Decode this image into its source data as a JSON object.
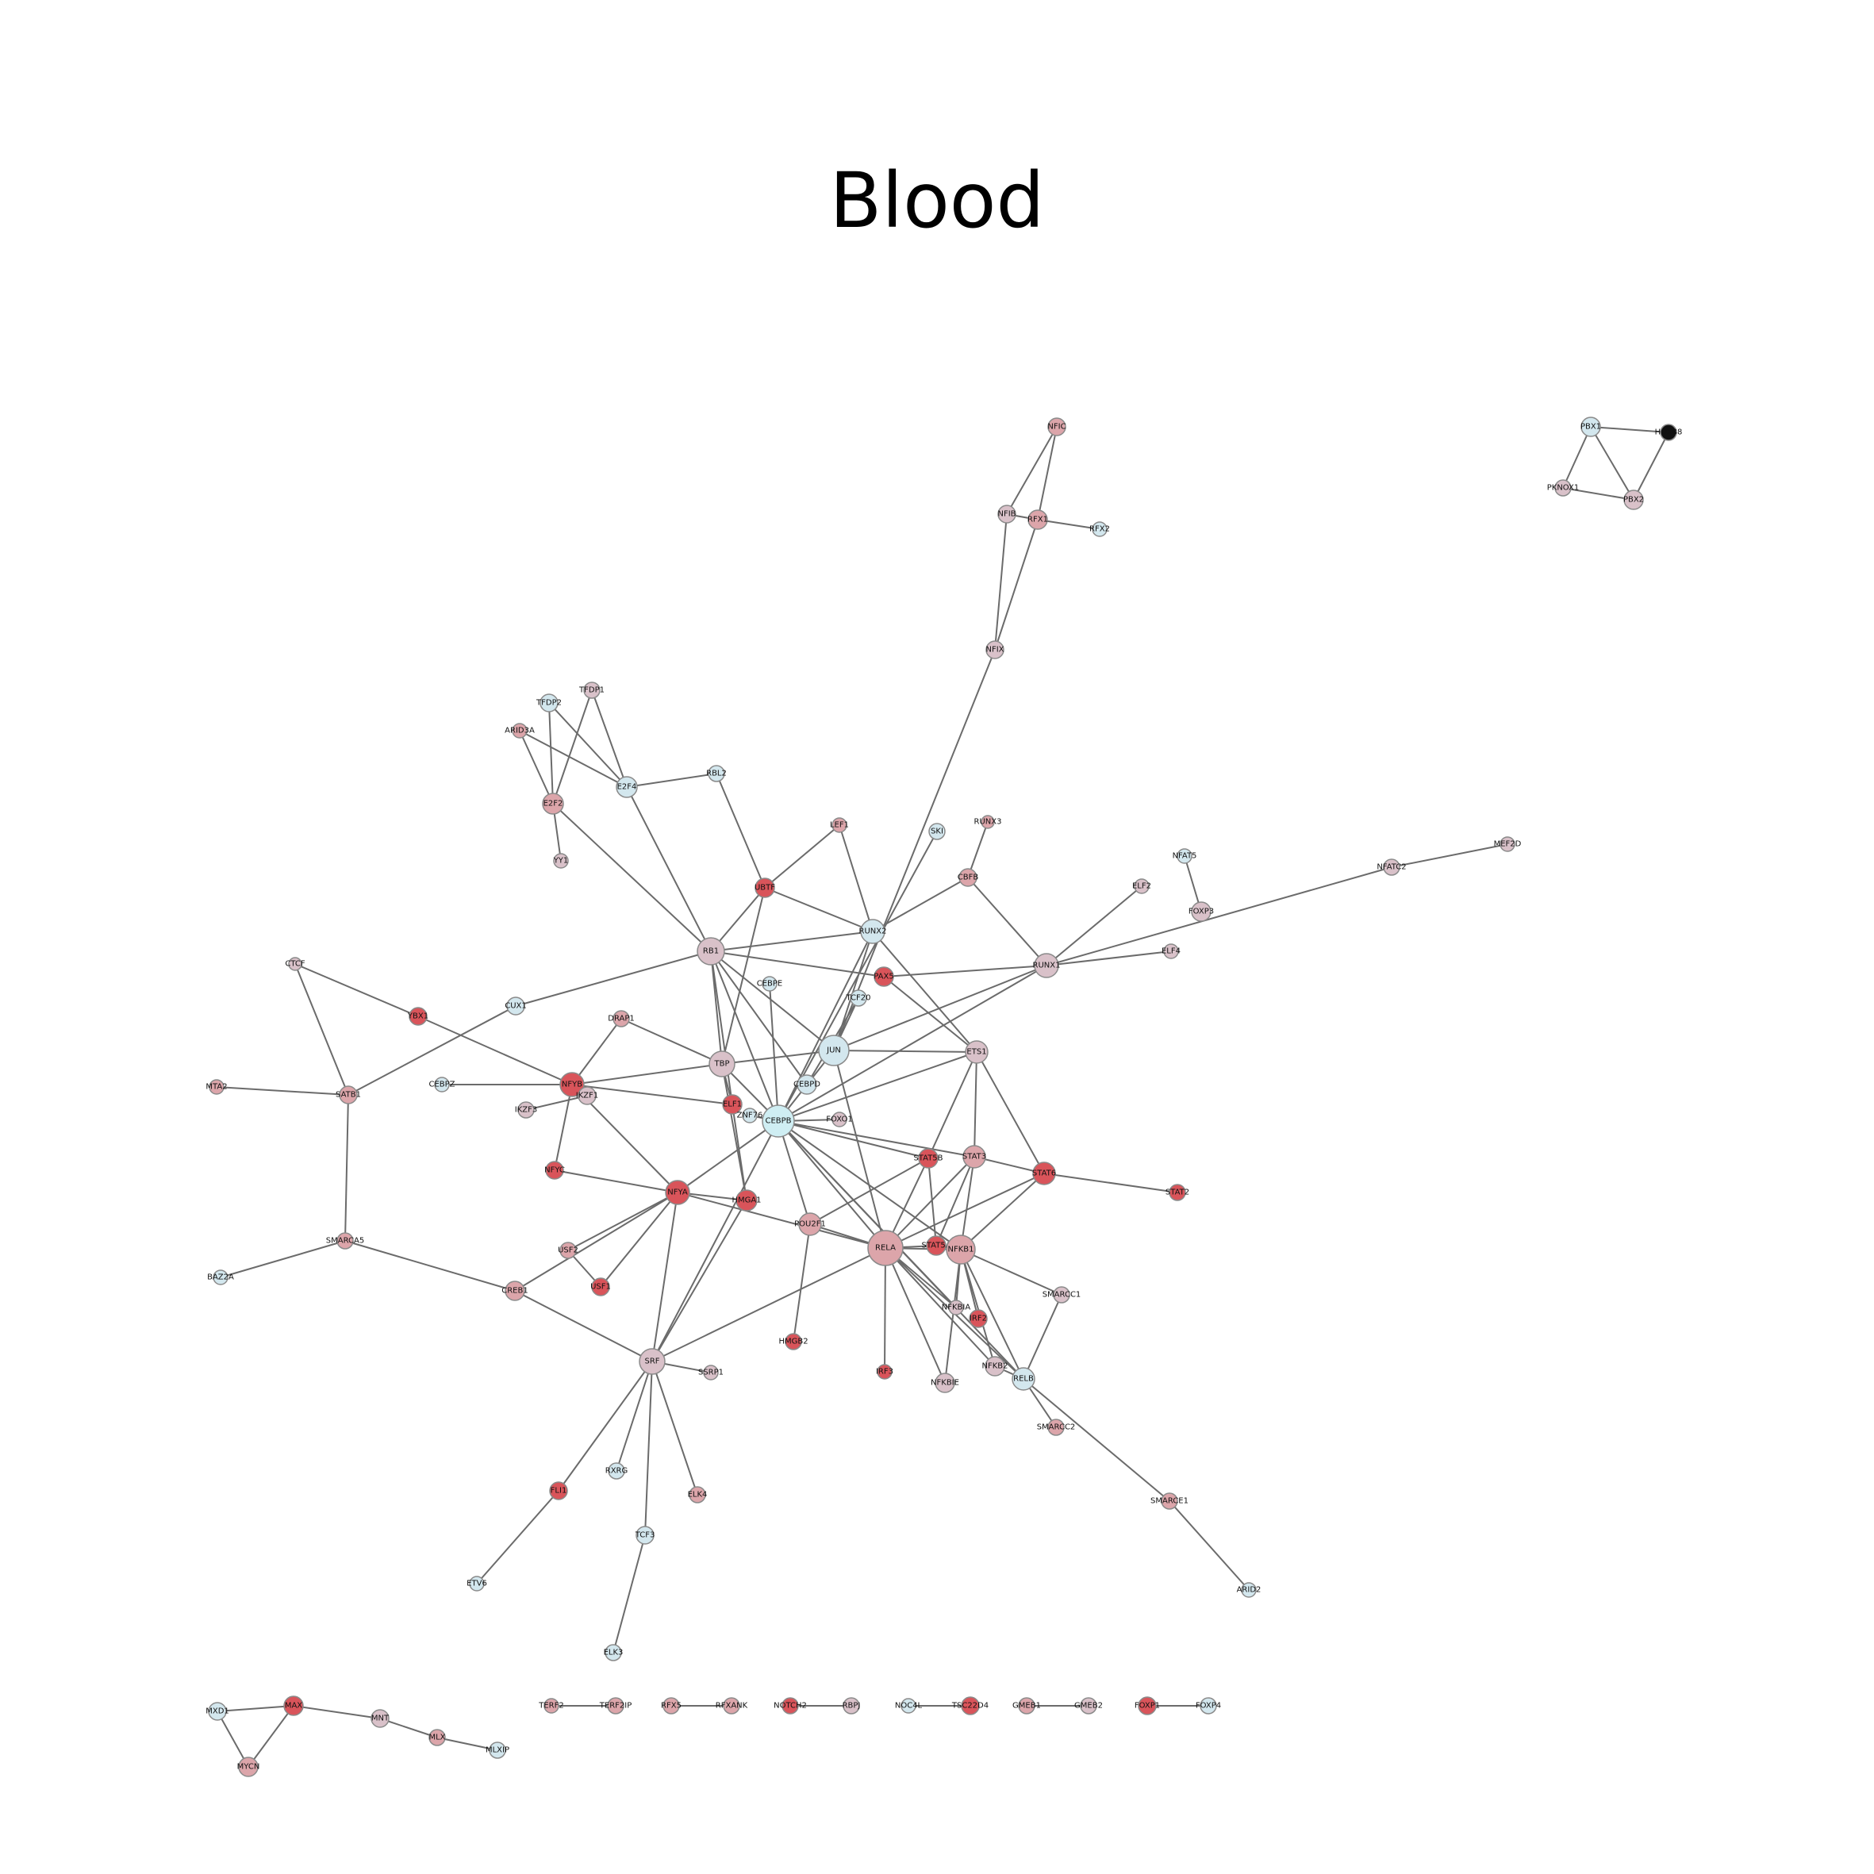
{
  "title": "Blood",
  "colors": {
    "red": "#d9545a",
    "pink": "#dca5aa",
    "mauve": "#d9c1c9",
    "light": "#d3e7ee",
    "cyan": "#cfeef3",
    "black": "#111111",
    "edge": "#6b6b6b"
  },
  "nodes": [
    {
      "id": "NFIC",
      "c": "pink"
    },
    {
      "id": "NFIB",
      "c": "mauve"
    },
    {
      "id": "RFX1",
      "c": "pink"
    },
    {
      "id": "RFX2",
      "c": "light"
    },
    {
      "id": "NFIX",
      "c": "mauve"
    },
    {
      "id": "PBX1",
      "c": "light"
    },
    {
      "id": "HOXB8",
      "c": "black",
      "lbl": "HOXB8"
    },
    {
      "id": "PKNOX1",
      "c": "mauve"
    },
    {
      "id": "PBX2",
      "c": "mauve"
    },
    {
      "id": "TFDP2",
      "c": "light"
    },
    {
      "id": "TFDP1",
      "c": "mauve"
    },
    {
      "id": "ARID3A",
      "c": "pink"
    },
    {
      "id": "E2F4",
      "c": "light"
    },
    {
      "id": "RBL2",
      "c": "light"
    },
    {
      "id": "E2F2",
      "c": "pink"
    },
    {
      "id": "YY1",
      "c": "mauve"
    },
    {
      "id": "LEF1",
      "c": "pink"
    },
    {
      "id": "SKI",
      "c": "light"
    },
    {
      "id": "RUNX3",
      "c": "pink"
    },
    {
      "id": "MEF2D",
      "c": "mauve"
    },
    {
      "id": "NFAT5",
      "c": "light"
    },
    {
      "id": "NFATC2",
      "c": "mauve"
    },
    {
      "id": "UBTF",
      "c": "red"
    },
    {
      "id": "CBFB",
      "c": "pink"
    },
    {
      "id": "ELF2",
      "c": "mauve"
    },
    {
      "id": "FOXP3",
      "c": "mauve"
    },
    {
      "id": "RUNX2",
      "c": "light"
    },
    {
      "id": "RB1",
      "c": "mauve"
    },
    {
      "id": "RUNX1",
      "c": "mauve"
    },
    {
      "id": "ELF4",
      "c": "mauve"
    },
    {
      "id": "CTCF",
      "c": "mauve"
    },
    {
      "id": "PAX5",
      "c": "red"
    },
    {
      "id": "CEBPE",
      "c": "light"
    },
    {
      "id": "TCF20",
      "c": "light"
    },
    {
      "id": "CUX1",
      "c": "light"
    },
    {
      "id": "YBX1",
      "c": "red"
    },
    {
      "id": "DRAP1",
      "c": "pink"
    },
    {
      "id": "JUN",
      "c": "light"
    },
    {
      "id": "ETS1",
      "c": "mauve"
    },
    {
      "id": "TBP",
      "c": "mauve"
    },
    {
      "id": "MTA2",
      "c": "pink"
    },
    {
      "id": "SATB1",
      "c": "pink"
    },
    {
      "id": "CEBPZ",
      "c": "light"
    },
    {
      "id": "NFYB",
      "c": "red"
    },
    {
      "id": "IKZF1",
      "c": "mauve"
    },
    {
      "id": "CEBPD",
      "c": "light"
    },
    {
      "id": "IKZF3",
      "c": "mauve"
    },
    {
      "id": "ELF1",
      "c": "red"
    },
    {
      "id": "ZNF76",
      "c": "light"
    },
    {
      "id": "CEBPB",
      "c": "cyan"
    },
    {
      "id": "FOXO1",
      "c": "mauve"
    },
    {
      "id": "STAT5B",
      "c": "red"
    },
    {
      "id": "STAT3",
      "c": "pink"
    },
    {
      "id": "STAT6",
      "c": "red"
    },
    {
      "id": "STAT2",
      "c": "red"
    },
    {
      "id": "NFYC",
      "c": "red"
    },
    {
      "id": "NFYA",
      "c": "red"
    },
    {
      "id": "HMGA1",
      "c": "red"
    },
    {
      "id": "POU2F1",
      "c": "pink"
    },
    {
      "id": "SMARCA5",
      "c": "pink"
    },
    {
      "id": "USF2",
      "c": "pink"
    },
    {
      "id": "RELA",
      "c": "pink"
    },
    {
      "id": "STAT5A",
      "c": "red"
    },
    {
      "id": "NFKB1",
      "c": "pink"
    },
    {
      "id": "USF1",
      "c": "red"
    },
    {
      "id": "BAZ2A",
      "c": "light"
    },
    {
      "id": "CREB1",
      "c": "pink"
    },
    {
      "id": "SMARCC1",
      "c": "mauve"
    },
    {
      "id": "NFKBIA",
      "c": "mauve",
      "lbl": "NFKBIA"
    },
    {
      "id": "IRF2",
      "c": "red"
    },
    {
      "id": "HMGB2",
      "c": "red"
    },
    {
      "id": "SRF",
      "c": "mauve"
    },
    {
      "id": "SSRP1",
      "c": "mauve"
    },
    {
      "id": "IRF3",
      "c": "red"
    },
    {
      "id": "NFKB2",
      "c": "mauve"
    },
    {
      "id": "NFKBIE",
      "c": "mauve"
    },
    {
      "id": "RELB",
      "c": "light"
    },
    {
      "id": "SMARCC2",
      "c": "pink"
    },
    {
      "id": "RXRG",
      "c": "light"
    },
    {
      "id": "FLI1",
      "c": "red"
    },
    {
      "id": "ELK4",
      "c": "pink"
    },
    {
      "id": "SMARCE1",
      "c": "pink"
    },
    {
      "id": "TCF3",
      "c": "light"
    },
    {
      "id": "ETV6",
      "c": "light"
    },
    {
      "id": "ARID2",
      "c": "light"
    },
    {
      "id": "ELK3",
      "c": "light"
    },
    {
      "id": "MXD1",
      "c": "light"
    },
    {
      "id": "MAX",
      "c": "red"
    },
    {
      "id": "MNT",
      "c": "mauve"
    },
    {
      "id": "MLX",
      "c": "pink"
    },
    {
      "id": "MLXIP",
      "c": "light"
    },
    {
      "id": "MYCN",
      "c": "pink"
    },
    {
      "id": "TERF2",
      "c": "pink"
    },
    {
      "id": "TERF2IP",
      "c": "pink"
    },
    {
      "id": "RFX5",
      "c": "pink"
    },
    {
      "id": "RFXANK",
      "c": "pink"
    },
    {
      "id": "NOTCH2",
      "c": "red"
    },
    {
      "id": "RBPJ",
      "c": "mauve"
    },
    {
      "id": "NOC4L",
      "c": "light"
    },
    {
      "id": "TSC22D4",
      "c": "red"
    },
    {
      "id": "GMEB1",
      "c": "pink"
    },
    {
      "id": "GMEB2",
      "c": "mauve"
    },
    {
      "id": "FOXP1",
      "c": "red"
    },
    {
      "id": "FOXP4",
      "c": "light"
    }
  ],
  "edges": [
    [
      "NFIC",
      "NFIB"
    ],
    [
      "NFIC",
      "RFX1"
    ],
    [
      "NFIB",
      "RFX1"
    ],
    [
      "RFX1",
      "RFX2"
    ],
    [
      "NFIB",
      "NFIX"
    ],
    [
      "RFX1",
      "NFIX"
    ],
    [
      "NFIX",
      "JUN"
    ],
    [
      "PBX1",
      "HOXB8"
    ],
    [
      "PBX1",
      "PKNOX1"
    ],
    [
      "PBX1",
      "PBX2"
    ],
    [
      "PKNOX1",
      "PBX2"
    ],
    [
      "HOXB8",
      "PBX2"
    ],
    [
      "TFDP2",
      "E2F2"
    ],
    [
      "TFDP2",
      "E2F4"
    ],
    [
      "TFDP1",
      "E2F2"
    ],
    [
      "TFDP1",
      "E2F4"
    ],
    [
      "ARID3A",
      "E2F2"
    ],
    [
      "ARID3A",
      "E2F4"
    ],
    [
      "E2F4",
      "RBL2"
    ],
    [
      "E2F2",
      "YY1"
    ],
    [
      "E2F2",
      "RB1"
    ],
    [
      "E2F4",
      "RB1"
    ],
    [
      "RBL2",
      "UBTF"
    ],
    [
      "LEF1",
      "UBTF"
    ],
    [
      "LEF1",
      "RUNX2"
    ],
    [
      "SKI",
      "CEBPB"
    ],
    [
      "RUNX3",
      "CBFB"
    ],
    [
      "CBFB",
      "RUNX1"
    ],
    [
      "CBFB",
      "RUNX2"
    ],
    [
      "MEF2D",
      "NFATC2"
    ],
    [
      "NFATC2",
      "RUNX1"
    ],
    [
      "NFAT5",
      "FOXP3"
    ],
    [
      "ELF2",
      "RUNX1"
    ],
    [
      "ELF4",
      "RUNX1"
    ],
    [
      "UBTF",
      "RB1"
    ],
    [
      "UBTF",
      "RUNX2"
    ],
    [
      "UBTF",
      "TBP"
    ],
    [
      "RB1",
      "RUNX2"
    ],
    [
      "RB1",
      "PAX5"
    ],
    [
      "RB1",
      "TBP"
    ],
    [
      "RB1",
      "CEBPB"
    ],
    [
      "RB1",
      "JUN"
    ],
    [
      "RB1",
      "ELF1"
    ],
    [
      "RB1",
      "CUX1"
    ],
    [
      "RB1",
      "CEBPD"
    ],
    [
      "RUNX2",
      "JUN"
    ],
    [
      "RUNX2",
      "ETS1"
    ],
    [
      "RUNX2",
      "CEBPB"
    ],
    [
      "PAX5",
      "RUNX1"
    ],
    [
      "PAX5",
      "ETS1"
    ],
    [
      "RUNX1",
      "JUN"
    ],
    [
      "RUNX1",
      "CEBPB"
    ],
    [
      "CTCF",
      "SATB1"
    ],
    [
      "CUX1",
      "SATB1"
    ],
    [
      "YBX1",
      "CTCF"
    ],
    [
      "YBX1",
      "NFYB"
    ],
    [
      "SATB1",
      "MTA2"
    ],
    [
      "SATB1",
      "SMARCA5"
    ],
    [
      "DRAP1",
      "TBP"
    ],
    [
      "DRAP1",
      "NFYB"
    ],
    [
      "TBP",
      "NFYB"
    ],
    [
      "TBP",
      "JUN"
    ],
    [
      "TBP",
      "CEBPB"
    ],
    [
      "TBP",
      "HMGA1"
    ],
    [
      "TBP",
      "ELF1"
    ],
    [
      "CEBPZ",
      "NFYB"
    ],
    [
      "NFYB",
      "ELF1"
    ],
    [
      "NFYB",
      "NFYC"
    ],
    [
      "NFYB",
      "NFYA"
    ],
    [
      "IKZF1",
      "IKZF3"
    ],
    [
      "IKZF1",
      "NFYB"
    ],
    [
      "JUN",
      "ETS1"
    ],
    [
      "JUN",
      "CEBPB"
    ],
    [
      "JUN",
      "RELA"
    ],
    [
      "JUN",
      "TCF20"
    ],
    [
      "CEBPE",
      "CEBPB"
    ],
    [
      "TCF20",
      "CEBPD"
    ],
    [
      "ETS1",
      "STAT3"
    ],
    [
      "ETS1",
      "STAT5B"
    ],
    [
      "ETS1",
      "STAT6"
    ],
    [
      "ETS1",
      "CEBPB"
    ],
    [
      "CEBPB",
      "FOXO1"
    ],
    [
      "CEBPB",
      "STAT5B"
    ],
    [
      "CEBPB",
      "NFYA"
    ],
    [
      "CEBPB",
      "RELA"
    ],
    [
      "CEBPB",
      "NFKB1"
    ],
    [
      "CEBPB",
      "STAT3"
    ],
    [
      "CEBPB",
      "SRF"
    ],
    [
      "CEBPB",
      "POU2F1"
    ],
    [
      "CEBPB",
      "ZNF76"
    ],
    [
      "CEBPB",
      "RELB"
    ],
    [
      "CEBPB",
      "NFKBIA"
    ],
    [
      "STAT3",
      "STAT6"
    ],
    [
      "STAT3",
      "STAT5A"
    ],
    [
      "STAT3",
      "RELA"
    ],
    [
      "STAT3",
      "NFKB1"
    ],
    [
      "STAT5B",
      "STAT5A"
    ],
    [
      "STAT5B",
      "POU2F1"
    ],
    [
      "STAT5B",
      "RELA"
    ],
    [
      "STAT6",
      "STAT2"
    ],
    [
      "STAT6",
      "NFKB1"
    ],
    [
      "STAT6",
      "RELA"
    ],
    [
      "NFYC",
      "NFYA"
    ],
    [
      "NFYA",
      "HMGA1"
    ],
    [
      "NFYA",
      "USF2"
    ],
    [
      "NFYA",
      "USF1"
    ],
    [
      "NFYA",
      "SRF"
    ],
    [
      "NFYA",
      "CREB1"
    ],
    [
      "NFYA",
      "RELA"
    ],
    [
      "HMGA1",
      "SRF"
    ],
    [
      "HMGA1",
      "ELF1"
    ],
    [
      "POU2F1",
      "HMGB2"
    ],
    [
      "POU2F1",
      "RELA"
    ],
    [
      "SMARCA5",
      "BAZ2A"
    ],
    [
      "SMARCA5",
      "CREB1"
    ],
    [
      "USF2",
      "USF1"
    ],
    [
      "CREB1",
      "SRF"
    ],
    [
      "RELA",
      "STAT5A"
    ],
    [
      "RELA",
      "NFKB1"
    ],
    [
      "RELA",
      "IRF3"
    ],
    [
      "RELA",
      "NFKBIA"
    ],
    [
      "RELA",
      "NFKBIE"
    ],
    [
      "RELA",
      "SRF"
    ],
    [
      "RELA",
      "NFKB2"
    ],
    [
      "RELA",
      "RELB"
    ],
    [
      "NFKB1",
      "NFKBIA"
    ],
    [
      "NFKB1",
      "IRF2"
    ],
    [
      "NFKB1",
      "NFKB2"
    ],
    [
      "NFKB1",
      "RELB"
    ],
    [
      "NFKB1",
      "NFKBIE"
    ],
    [
      "NFKB1",
      "SMARCC1"
    ],
    [
      "SMARCC1",
      "RELB"
    ],
    [
      "RELB",
      "NFKB2"
    ],
    [
      "RELB",
      "SMARCC2"
    ],
    [
      "RELB",
      "SMARCE1"
    ],
    [
      "SMARCE1",
      "ARID2"
    ],
    [
      "SRF",
      "SSRP1"
    ],
    [
      "SRF",
      "RXRG"
    ],
    [
      "SRF",
      "FLI1"
    ],
    [
      "SRF",
      "ELK4"
    ],
    [
      "SRF",
      "TCF3"
    ],
    [
      "FLI1",
      "ETV6"
    ],
    [
      "TCF3",
      "ELK3"
    ],
    [
      "MXD1",
      "MAX"
    ],
    [
      "MXD1",
      "MYCN"
    ],
    [
      "MAX",
      "MYCN"
    ],
    [
      "MAX",
      "MNT"
    ],
    [
      "MNT",
      "MLX"
    ],
    [
      "MLX",
      "MLXIP"
    ],
    [
      "TERF2",
      "TERF2IP"
    ],
    [
      "RFX5",
      "RFXANK"
    ],
    [
      "NOTCH2",
      "RBPJ"
    ],
    [
      "NOC4L",
      "TSC22D4"
    ],
    [
      "GMEB1",
      "GMEB2"
    ],
    [
      "FOXP1",
      "FOXP4"
    ]
  ]
}
